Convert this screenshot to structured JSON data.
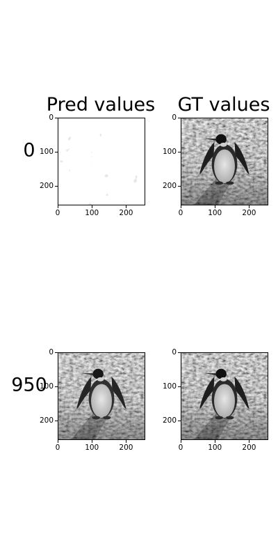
{
  "column_titles": [
    "Pred values",
    "GT values"
  ],
  "row_labels": [
    "0",
    "950"
  ],
  "chart_data": [
    {
      "type": "heatmap",
      "title": "Pred values",
      "row_label": "0",
      "content": "grayscale image: mostly white with scattered gray blotches (untrained prediction noise)",
      "xlim": [
        0,
        256
      ],
      "ylim": [
        256,
        0
      ],
      "xticks": [
        0,
        100,
        200
      ],
      "yticks": [
        0,
        100,
        200
      ],
      "xticklabels": [
        "0",
        "100",
        "200"
      ],
      "yticklabels": [
        "0",
        "100",
        "200"
      ],
      "colormap": "gray"
    },
    {
      "type": "heatmap",
      "title": "GT values",
      "row_label": "0",
      "content": "grayscale photograph of a king penguin standing on rocky ground",
      "xlim": [
        0,
        256
      ],
      "ylim": [
        256,
        0
      ],
      "xticks": [
        0,
        100,
        200
      ],
      "yticks": [
        0,
        100,
        200
      ],
      "xticklabels": [
        "0",
        "100",
        "200"
      ],
      "yticklabels": [
        "0",
        "100",
        "200"
      ],
      "colormap": "gray"
    },
    {
      "type": "heatmap",
      "title": "Pred values",
      "row_label": "950",
      "content": "grayscale reconstruction of the king penguin photograph, nearly identical to ground truth",
      "xlim": [
        0,
        256
      ],
      "ylim": [
        256,
        0
      ],
      "xticks": [
        0,
        100,
        200
      ],
      "yticks": [
        0,
        100,
        200
      ],
      "xticklabels": [
        "0",
        "100",
        "200"
      ],
      "yticklabels": [
        "0",
        "100",
        "200"
      ],
      "colormap": "gray"
    },
    {
      "type": "heatmap",
      "title": "GT values",
      "row_label": "950",
      "content": "grayscale photograph of a king penguin standing on rocky ground",
      "xlim": [
        0,
        256
      ],
      "ylim": [
        256,
        0
      ],
      "xticks": [
        0,
        100,
        200
      ],
      "yticks": [
        0,
        100,
        200
      ],
      "xticklabels": [
        "0",
        "100",
        "200"
      ],
      "yticklabels": [
        "0",
        "100",
        "200"
      ],
      "colormap": "gray"
    }
  ]
}
